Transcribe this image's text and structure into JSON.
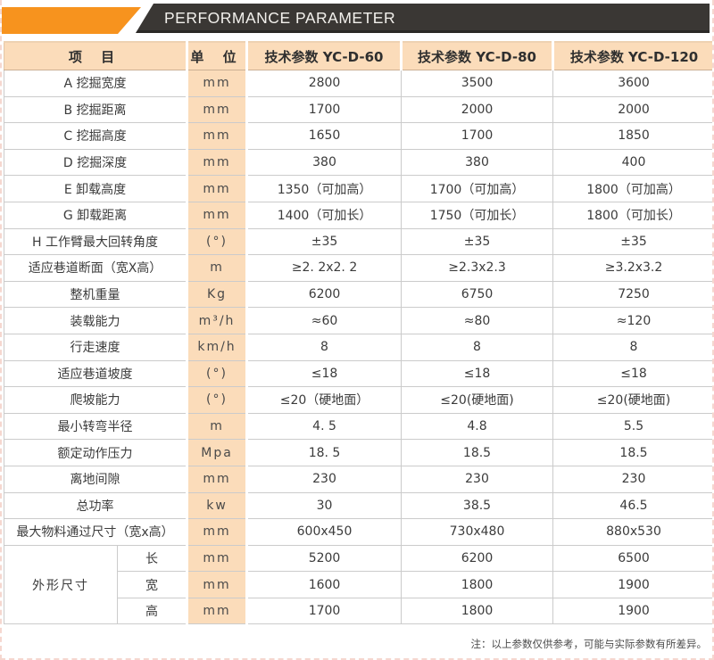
{
  "banner": {
    "title": "PERFORMANCE PARAMETER"
  },
  "colors": {
    "accent_orange": "#f7931e",
    "banner_dark": "#3a3734",
    "header_peach": "#fbdcba",
    "grid_line": "#cbcbcb"
  },
  "table": {
    "columns": [
      "项 目",
      "单 位",
      "技术参数 YC-D-60",
      "技术参数 YC-D-80",
      "技术参数 YC-D-120"
    ],
    "dim_group": {
      "label": "外形尺寸"
    },
    "rows": [
      {
        "item": "A 挖掘宽度",
        "unit": "mm",
        "d60": "2800",
        "d80": "3500",
        "d120": "3600"
      },
      {
        "item": "B 挖掘距离",
        "unit": "mm",
        "d60": "1700",
        "d80": "2000",
        "d120": "2000"
      },
      {
        "item": "C 挖掘高度",
        "unit": "mm",
        "d60": "1650",
        "d80": "1700",
        "d120": "1850"
      },
      {
        "item": "D 挖掘深度",
        "unit": "mm",
        "d60": "380",
        "d80": "380",
        "d120": "400"
      },
      {
        "item": "E 卸载高度",
        "unit": "mm",
        "d60": "1350（可加高）",
        "d80": "1700（可加高）",
        "d120": "1800（可加高）"
      },
      {
        "item": "G 卸载距离",
        "unit": "mm",
        "d60": "1400（可加长）",
        "d80": "1750（可加长）",
        "d120": "1800（可加长）"
      },
      {
        "item": "H 工作臂最大回转角度",
        "unit": "(°)",
        "d60": "±35",
        "d80": "±35",
        "d120": "±35"
      },
      {
        "item": "适应巷道断面（宽X高）",
        "unit": "m",
        "d60": "≥2. 2x2. 2",
        "d80": "≥2.3x2.3",
        "d120": "≥3.2x3.2"
      },
      {
        "item": "整机重量",
        "unit": "Kg",
        "d60": "6200",
        "d80": "6750",
        "d120": "7250"
      },
      {
        "item": "装载能力",
        "unit": "m³/h",
        "d60": "≈60",
        "d80": "≈80",
        "d120": "≈120"
      },
      {
        "item": "行走速度",
        "unit": "km/h",
        "d60": "8",
        "d80": "8",
        "d120": "8"
      },
      {
        "item": "适应巷道坡度",
        "unit": "(°)",
        "d60": "≤18",
        "d80": "≤18",
        "d120": "≤18"
      },
      {
        "item": "爬坡能力",
        "unit": "(°)",
        "d60": "≤20（硬地面）",
        "d80": "≤20(硬地面)",
        "d120": "≤20(硬地面)"
      },
      {
        "item": "最小转弯半径",
        "unit": "m",
        "d60": "4. 5",
        "d80": "4.8",
        "d120": "5.5"
      },
      {
        "item": "额定动作压力",
        "unit": "Mpa",
        "d60": "18. 5",
        "d80": "18.5",
        "d120": "18.5"
      },
      {
        "item": "离地间隙",
        "unit": "mm",
        "d60": "230",
        "d80": "230",
        "d120": "230"
      },
      {
        "item": "总功率",
        "unit": "kw",
        "d60": "30",
        "d80": "38.5",
        "d120": "46.5"
      },
      {
        "item": "最大物料通过尺寸（宽x高）",
        "unit": "mm",
        "d60": "600x450",
        "d80": "730x480",
        "d120": "880x530"
      },
      {
        "item": "长",
        "sub": true,
        "group": "start",
        "unit": "mm",
        "d60": "5200",
        "d80": "6200",
        "d120": "6500"
      },
      {
        "item": "宽",
        "sub": true,
        "unit": "mm",
        "d60": "1600",
        "d80": "1800",
        "d120": "1900"
      },
      {
        "item": "高",
        "sub": true,
        "unit": "mm",
        "d60": "1700",
        "d80": "1800",
        "d120": "1900"
      }
    ]
  },
  "footnote": "注：以上参数仅供参考，可能与实际参数有所差异。"
}
